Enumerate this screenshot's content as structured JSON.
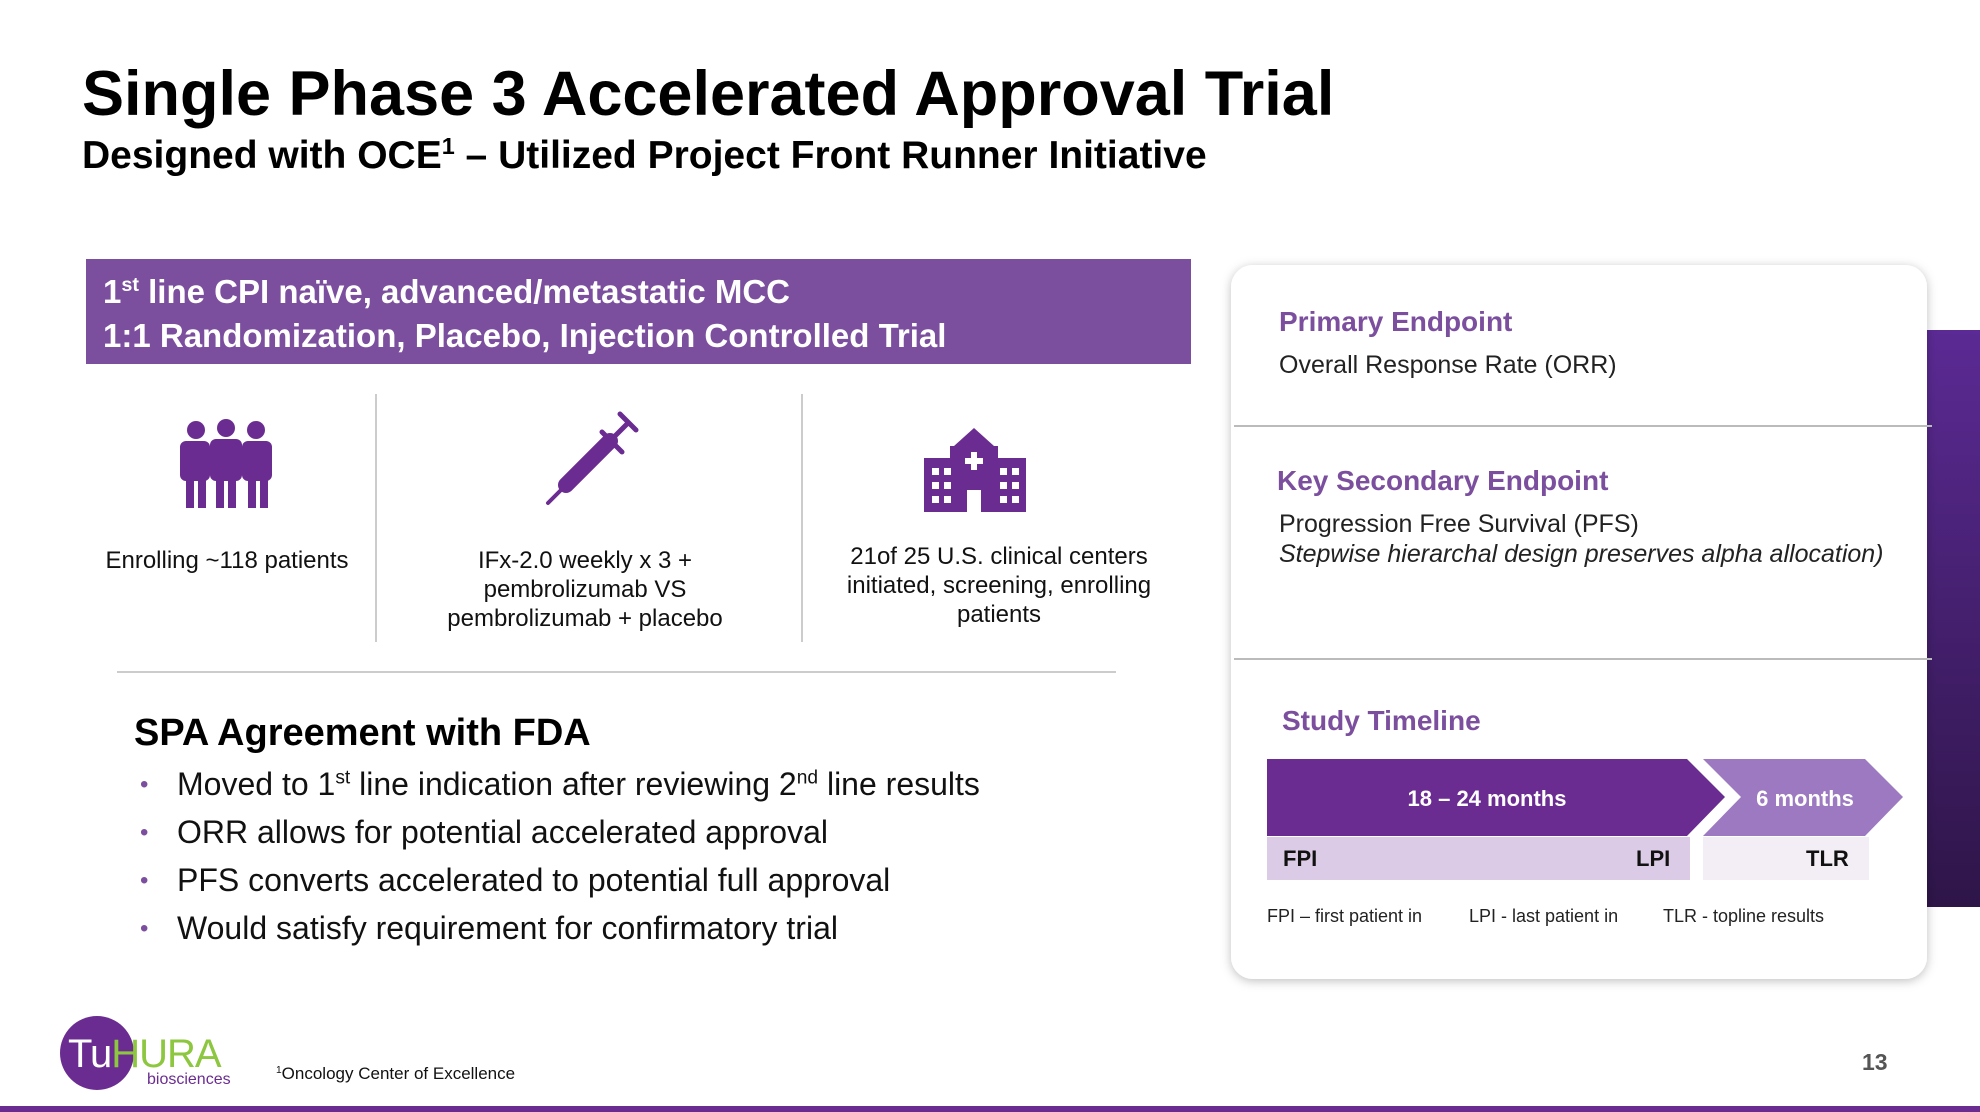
{
  "header": {
    "title": "Single Phase 3 Accelerated Approval Trial",
    "subtitle": [
      "Designed with OCE",
      "1",
      " – Utilized Project Front Runner Initiative"
    ]
  },
  "banner": {
    "line1": [
      "1",
      "st",
      " line CPI naïve, advanced/metastatic MCC"
    ],
    "line2": "1:1 Randomization, Placebo, Injection Controlled Trial"
  },
  "features": [
    "Enrolling ~118 patients",
    "IFx-2.0 weekly x 3 + pembrolizumab VS pembrolizumab + placebo",
    "21of 25  U.S. clinical centers initiated, screening, enrolling patients"
  ],
  "spa": {
    "title": "SPA Agreement with FDA",
    "bullets": [
      [
        "Moved to 1",
        "st",
        " line indication after reviewing 2",
        "nd",
        " line results"
      ],
      [
        "ORR allows for potential accelerated approval"
      ],
      [
        "PFS converts accelerated to potential full approval"
      ],
      [
        "Would satisfy requirement for confirmatory trial"
      ]
    ]
  },
  "endpoints": {
    "primary": {
      "title": "Primary Endpoint",
      "text": "Overall Response Rate (ORR)"
    },
    "secondary": {
      "title": "Key Secondary Endpoint",
      "text": "Progression Free Survival (PFS)",
      "note": "Stepwise hierarchal design preserves alpha allocation)"
    }
  },
  "timeline": {
    "title": "Study Timeline",
    "phase1": "18 – 24 months",
    "phase2": "6 months",
    "fpi": "FPI",
    "lpi": "LPI",
    "tlr": "TLR",
    "legend": [
      "FPI – first patient in",
      "LPI - last patient in",
      "TLR - topline results"
    ]
  },
  "footnote": [
    "1",
    "Oncology Center of Excellence"
  ],
  "logo": {
    "part1": "Tu",
    "part2": "HURA",
    "sub": "biosciences"
  },
  "page_number": "13"
}
